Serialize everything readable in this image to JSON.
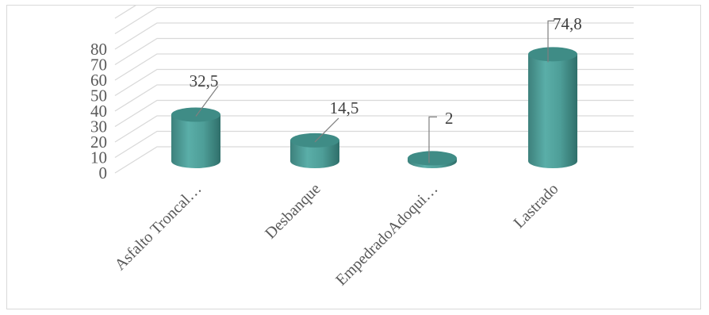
{
  "chart_data": {
    "type": "bar",
    "style": "3d-cylinder",
    "categories": [
      "Asfalto Troncal…",
      "Desbanque",
      "EmpedradoAdoqui…",
      "Lastrado"
    ],
    "values": [
      32.5,
      14.5,
      2,
      74.8
    ],
    "data_labels": [
      "32,5",
      "14,5",
      "2",
      "74,8"
    ],
    "y_ticks": [
      "0",
      "10",
      "20",
      "30",
      "40",
      "50",
      "60",
      "70",
      "80"
    ],
    "ylim": [
      0,
      80
    ],
    "grid": true,
    "legend": "none",
    "bar_color": "#4e9e98"
  }
}
